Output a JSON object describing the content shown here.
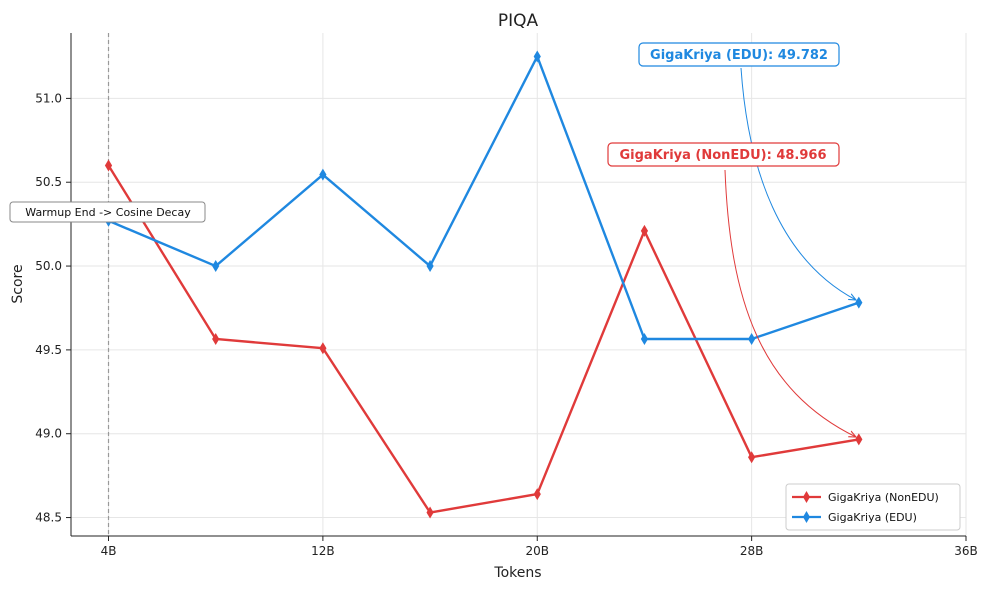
{
  "chart_data": {
    "type": "line",
    "title": "PIQA",
    "xlabel": "Tokens",
    "ylabel": "Score",
    "x": [
      4,
      8,
      12,
      16,
      20,
      24,
      28,
      32
    ],
    "xlim": [
      2.6,
      36
    ],
    "ylim": [
      48.39,
      51.39
    ],
    "xticks": [
      4,
      12,
      20,
      28,
      36
    ],
    "xtick_labels": [
      "4B",
      "12B",
      "20B",
      "28B",
      "36B"
    ],
    "yticks": [
      48.5,
      49.0,
      49.5,
      50.0,
      50.5,
      51.0
    ],
    "ytick_labels": [
      "48.5",
      "49.0",
      "49.5",
      "50.0",
      "50.5",
      "51.0"
    ],
    "grid": true,
    "legend_position": "lower-right",
    "series": [
      {
        "name": "GigaKriya (NonEDU)",
        "color": "#e03a3a",
        "marker": "thin-diamond",
        "values": [
          50.6,
          49.565,
          49.51,
          48.53,
          48.64,
          50.21,
          48.86,
          48.966
        ]
      },
      {
        "name": "GigaKriya (EDU)",
        "color": "#1f88e0",
        "marker": "thin-diamond",
        "values": [
          50.27,
          50.0,
          50.545,
          50.0,
          51.25,
          49.565,
          49.565,
          49.782
        ]
      }
    ],
    "vline": {
      "x": 4,
      "label": "Warmup End -> Cosine Decay"
    },
    "annotations": [
      {
        "series": 1,
        "text": "GigaKriya (EDU): 49.782",
        "color": "#1f88e0"
      },
      {
        "series": 0,
        "text": "GigaKriya (NonEDU): 48.966",
        "color": "#e03a3a"
      }
    ]
  }
}
